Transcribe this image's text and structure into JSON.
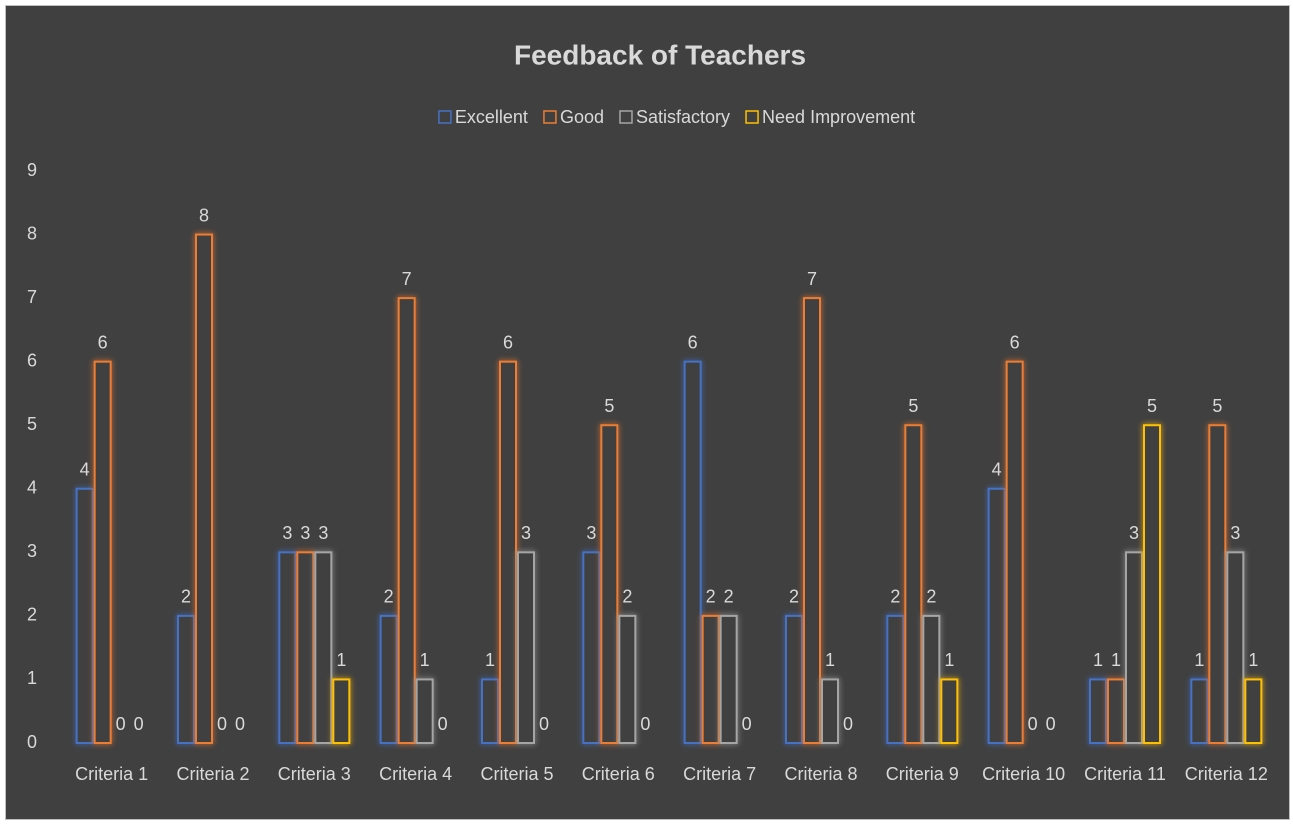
{
  "chart_data": {
    "type": "bar",
    "title": "Feedback of Teachers",
    "categories": [
      "Criteria 1",
      "Criteria 2",
      "Criteria 3",
      "Criteria 4",
      "Criteria 5",
      "Criteria 6",
      "Criteria 7",
      "Criteria 8",
      "Criteria 9",
      "Criteria 10",
      "Criteria 11",
      "Criteria 12"
    ],
    "series": [
      {
        "name": "Excellent",
        "color": "#4472c4",
        "values": [
          4,
          2,
          3,
          2,
          1,
          3,
          6,
          2,
          2,
          4,
          1,
          1
        ]
      },
      {
        "name": "Good",
        "color": "#ed7d31",
        "values": [
          6,
          8,
          3,
          7,
          6,
          5,
          2,
          7,
          5,
          6,
          1,
          5
        ]
      },
      {
        "name": "Satisfactory",
        "color": "#a5a5a5",
        "values": [
          0,
          0,
          3,
          1,
          3,
          2,
          2,
          1,
          2,
          0,
          3,
          3
        ]
      },
      {
        "name": "Need Improvement",
        "color": "#ffc000",
        "values": [
          0,
          0,
          1,
          0,
          0,
          0,
          0,
          0,
          1,
          0,
          5,
          1
        ]
      }
    ],
    "ylim": [
      0,
      9
    ],
    "yticks": [
      0,
      1,
      2,
      3,
      4,
      5,
      6,
      7,
      8,
      9
    ],
    "grid": false,
    "legend": "top"
  }
}
